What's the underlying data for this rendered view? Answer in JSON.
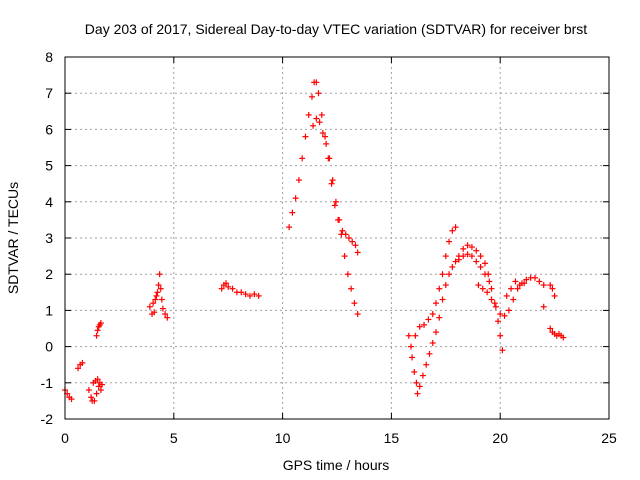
{
  "chart_data": {
    "type": "scatter",
    "title": "Day 203 of 2017, Sidereal Day-to-day VTEC variation (SDTVAR) for receiver brst",
    "xlabel": "GPS time / hours",
    "ylabel": "SDTVAR / TECUs",
    "xlim": [
      0,
      25
    ],
    "ylim": [
      -2,
      8
    ],
    "xticks": [
      0,
      5,
      10,
      15,
      20,
      25
    ],
    "yticks": [
      -2,
      -1,
      0,
      1,
      2,
      3,
      4,
      5,
      6,
      7,
      8
    ],
    "grid": true,
    "marker": "+",
    "marker_color": "#ff0000",
    "series": [
      {
        "name": "sdtvar",
        "points": [
          [
            0.0,
            -1.2
          ],
          [
            0.1,
            -1.3
          ],
          [
            0.2,
            -1.4
          ],
          [
            0.3,
            -1.45
          ],
          [
            0.6,
            -0.6
          ],
          [
            0.7,
            -0.5
          ],
          [
            0.8,
            -0.45
          ],
          [
            1.1,
            -1.2
          ],
          [
            1.2,
            -1.4
          ],
          [
            1.25,
            -1.5
          ],
          [
            1.3,
            -1.0
          ],
          [
            1.35,
            -1.5
          ],
          [
            1.4,
            -0.95
          ],
          [
            1.45,
            -1.3
          ],
          [
            1.5,
            -0.9
          ],
          [
            1.55,
            -1.1
          ],
          [
            1.6,
            -1.0
          ],
          [
            1.65,
            -1.2
          ],
          [
            1.7,
            -1.05
          ],
          [
            1.45,
            0.3
          ],
          [
            1.5,
            0.45
          ],
          [
            1.55,
            0.55
          ],
          [
            1.6,
            0.6
          ],
          [
            1.65,
            0.65
          ],
          [
            3.9,
            1.1
          ],
          [
            4.0,
            0.9
          ],
          [
            4.05,
            1.2
          ],
          [
            4.1,
            0.95
          ],
          [
            4.15,
            1.3
          ],
          [
            4.2,
            1.4
          ],
          [
            4.25,
            1.5
          ],
          [
            4.3,
            1.7
          ],
          [
            4.35,
            2.0
          ],
          [
            4.4,
            1.6
          ],
          [
            4.45,
            1.3
          ],
          [
            4.5,
            1.05
          ],
          [
            4.6,
            0.9
          ],
          [
            4.7,
            0.8
          ],
          [
            7.2,
            1.6
          ],
          [
            7.3,
            1.7
          ],
          [
            7.4,
            1.75
          ],
          [
            7.5,
            1.65
          ],
          [
            7.7,
            1.6
          ],
          [
            7.9,
            1.5
          ],
          [
            8.1,
            1.5
          ],
          [
            8.3,
            1.45
          ],
          [
            8.5,
            1.4
          ],
          [
            8.7,
            1.45
          ],
          [
            8.9,
            1.4
          ],
          [
            10.3,
            3.3
          ],
          [
            10.45,
            3.7
          ],
          [
            10.6,
            4.1
          ],
          [
            10.75,
            4.6
          ],
          [
            10.9,
            5.2
          ],
          [
            11.05,
            5.8
          ],
          [
            11.2,
            6.4
          ],
          [
            11.35,
            6.9
          ],
          [
            11.45,
            7.3
          ],
          [
            11.55,
            7.3
          ],
          [
            11.65,
            7.0
          ],
          [
            11.8,
            6.4
          ],
          [
            11.95,
            5.8
          ],
          [
            12.1,
            5.2
          ],
          [
            12.25,
            4.5
          ],
          [
            12.4,
            3.9
          ],
          [
            12.55,
            3.5
          ],
          [
            12.7,
            3.1
          ],
          [
            12.85,
            2.5
          ],
          [
            13.0,
            2.0
          ],
          [
            13.15,
            1.6
          ],
          [
            13.3,
            1.2
          ],
          [
            13.45,
            0.9
          ],
          [
            11.4,
            6.1
          ],
          [
            11.55,
            6.3
          ],
          [
            11.7,
            6.2
          ],
          [
            11.85,
            5.9
          ],
          [
            12.0,
            5.6
          ],
          [
            12.15,
            5.2
          ],
          [
            12.3,
            4.6
          ],
          [
            12.45,
            4.0
          ],
          [
            12.6,
            3.5
          ],
          [
            12.75,
            3.2
          ],
          [
            12.9,
            3.1
          ],
          [
            13.05,
            3.0
          ],
          [
            13.2,
            2.9
          ],
          [
            13.35,
            2.8
          ],
          [
            13.45,
            2.6
          ],
          [
            15.8,
            0.3
          ],
          [
            15.9,
            0.0
          ],
          [
            15.95,
            -0.3
          ],
          [
            16.05,
            -0.7
          ],
          [
            16.15,
            -1.0
          ],
          [
            16.2,
            -1.3
          ],
          [
            16.3,
            -1.1
          ],
          [
            16.45,
            -0.8
          ],
          [
            16.6,
            -0.5
          ],
          [
            16.75,
            -0.2
          ],
          [
            16.9,
            0.1
          ],
          [
            17.05,
            0.4
          ],
          [
            17.2,
            0.8
          ],
          [
            17.35,
            1.3
          ],
          [
            17.5,
            1.7
          ],
          [
            17.65,
            2.0
          ],
          [
            17.8,
            2.2
          ],
          [
            17.95,
            2.35
          ],
          [
            18.1,
            2.4
          ],
          [
            18.3,
            2.5
          ],
          [
            18.5,
            2.55
          ],
          [
            18.7,
            2.5
          ],
          [
            18.9,
            2.35
          ],
          [
            19.1,
            2.2
          ],
          [
            19.3,
            2.0
          ],
          [
            19.5,
            1.8
          ],
          [
            16.1,
            0.3
          ],
          [
            16.3,
            0.55
          ],
          [
            16.5,
            0.6
          ],
          [
            16.7,
            0.75
          ],
          [
            16.9,
            0.9
          ],
          [
            17.05,
            1.2
          ],
          [
            17.2,
            1.6
          ],
          [
            17.35,
            2.0
          ],
          [
            17.5,
            2.5
          ],
          [
            17.65,
            2.9
          ],
          [
            17.8,
            3.2
          ],
          [
            17.95,
            3.3
          ],
          [
            18.1,
            2.5
          ],
          [
            18.3,
            2.7
          ],
          [
            18.5,
            2.8
          ],
          [
            18.7,
            2.75
          ],
          [
            18.9,
            2.65
          ],
          [
            19.1,
            2.5
          ],
          [
            19.3,
            2.3
          ],
          [
            19.45,
            2.0
          ],
          [
            19.6,
            1.6
          ],
          [
            19.75,
            1.2
          ],
          [
            19.9,
            0.7
          ],
          [
            20.0,
            0.3
          ],
          [
            20.1,
            -0.1
          ],
          [
            19.0,
            1.7
          ],
          [
            19.2,
            1.6
          ],
          [
            19.4,
            1.5
          ],
          [
            19.6,
            1.3
          ],
          [
            19.8,
            1.1
          ],
          [
            20.0,
            0.9
          ],
          [
            20.2,
            0.85
          ],
          [
            20.4,
            1.0
          ],
          [
            20.6,
            1.3
          ],
          [
            20.8,
            1.6
          ],
          [
            21.0,
            1.75
          ],
          [
            21.2,
            1.85
          ],
          [
            21.4,
            1.9
          ],
          [
            21.6,
            1.9
          ],
          [
            21.8,
            1.8
          ],
          [
            22.0,
            1.7
          ],
          [
            20.3,
            1.4
          ],
          [
            20.5,
            1.6
          ],
          [
            20.7,
            1.8
          ],
          [
            20.9,
            1.7
          ],
          [
            21.1,
            1.75
          ],
          [
            22.0,
            1.1
          ],
          [
            22.3,
            1.7
          ],
          [
            22.4,
            1.6
          ],
          [
            22.5,
            1.4
          ],
          [
            22.3,
            0.5
          ],
          [
            22.4,
            0.4
          ],
          [
            22.5,
            0.35
          ],
          [
            22.6,
            0.3
          ],
          [
            22.7,
            0.35
          ],
          [
            22.8,
            0.3
          ],
          [
            22.9,
            0.25
          ]
        ]
      }
    ]
  }
}
